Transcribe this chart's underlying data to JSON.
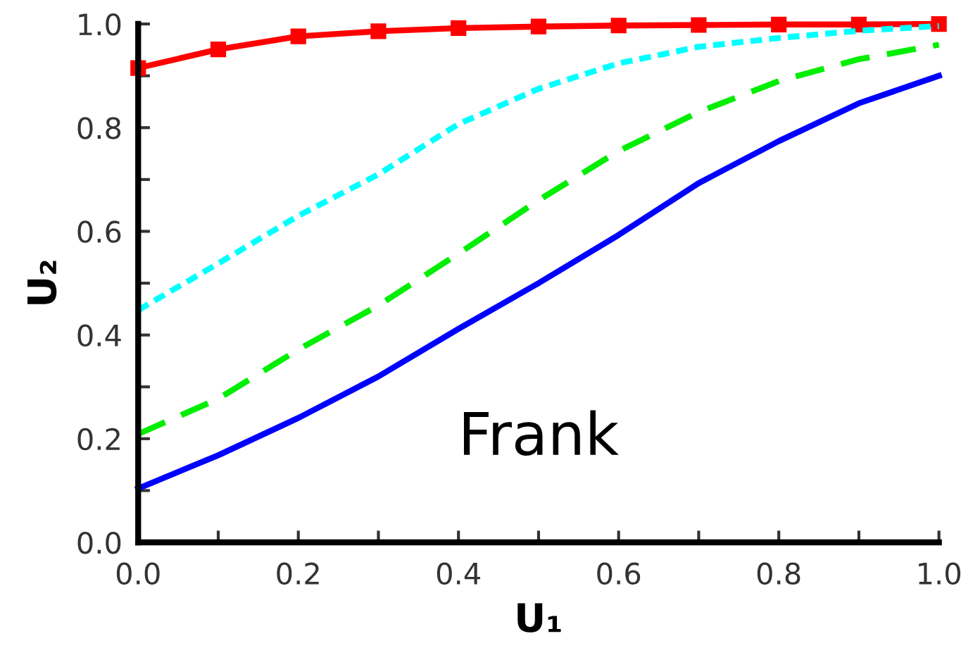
{
  "chart_data": {
    "type": "line",
    "xlabel": "U₁",
    "ylabel": "U₂",
    "x": [
      0,
      0.1,
      0.2,
      0.3,
      0.4,
      0.5,
      0.6,
      0.7,
      0.8,
      0.9,
      1.0
    ],
    "xlim": [
      0,
      1.0
    ],
    "ylim": [
      0,
      1.0
    ],
    "xticks": [
      {
        "value": 0,
        "label": "0.0"
      },
      {
        "value": 0.1,
        "label": null
      },
      0.2,
      {
        "value": 0.3,
        "label": null
      },
      0.4,
      {
        "value": 0.5,
        "label": null
      },
      0.6,
      {
        "value": 0.7,
        "label": null
      },
      0.8,
      {
        "value": 0.9,
        "label": null
      },
      {
        "value": 1,
        "label": "1.0"
      }
    ],
    "yticks": [
      {
        "value": 0,
        "label": "0.0"
      },
      {
        "value": 0.1,
        "label": null
      },
      0.2,
      {
        "value": 0.3,
        "label": null
      },
      0.4,
      {
        "value": 0.5,
        "label": null
      },
      0.6,
      {
        "value": 0.7,
        "label": null
      },
      0.8,
      {
        "value": 0.9,
        "label": null
      },
      {
        "value": 1,
        "label": "1.0"
      }
    ],
    "grid": false,
    "legend": false,
    "annotations": [
      "Frank"
    ],
    "series": [
      {
        "color": "#ff0000",
        "marker": "square",
        "line_style": "solid",
        "values": [
          0.915,
          0.951,
          0.976,
          0.986,
          0.992,
          0.995,
          0.997,
          0.998,
          0.999,
          0.999,
          1.0
        ]
      },
      {
        "color": "#00ffff",
        "marker": "none",
        "line_style": "dotted",
        "values": [
          0.448,
          0.538,
          0.63,
          0.71,
          0.807,
          0.875,
          0.924,
          0.956,
          0.973,
          0.987,
          0.996
        ]
      },
      {
        "color": "#00ee00",
        "marker": "none",
        "line_style": "dashed",
        "values": [
          0.209,
          0.277,
          0.372,
          0.457,
          0.557,
          0.66,
          0.755,
          0.83,
          0.89,
          0.932,
          0.96
        ]
      },
      {
        "color": "#0000ff",
        "marker": "none",
        "line_style": "solid",
        "values": [
          0.104,
          0.168,
          0.24,
          0.32,
          0.412,
          0.5,
          0.593,
          0.693,
          0.774,
          0.847,
          0.9
        ]
      }
    ]
  }
}
